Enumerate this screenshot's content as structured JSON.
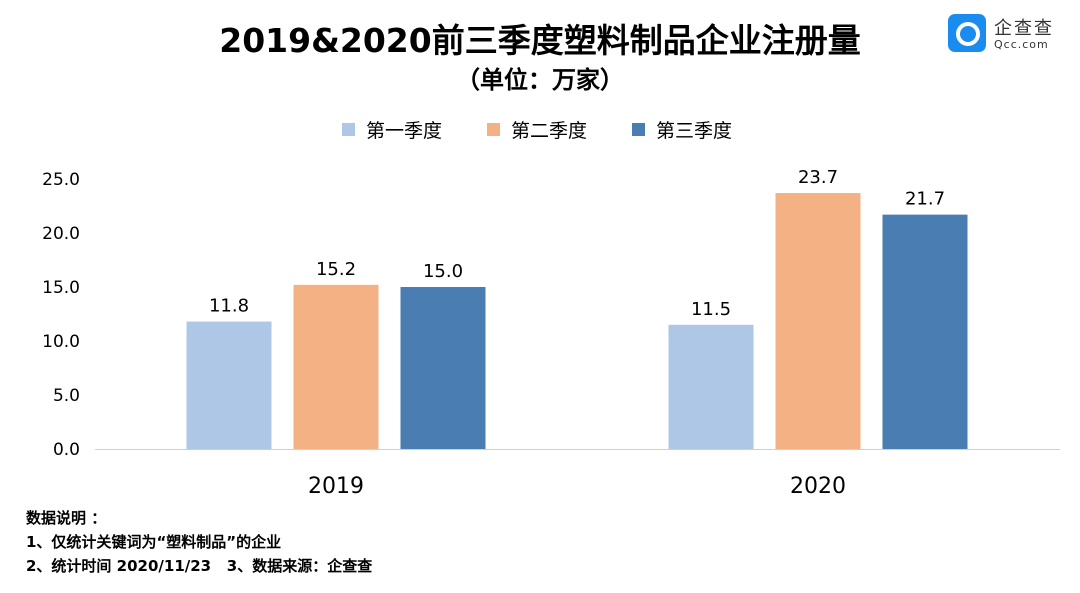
{
  "chart_data": {
    "type": "bar",
    "title": "2019&2020前三季度塑料制品企业注册量",
    "subtitle": "（单位：万家）",
    "categories": [
      "2019",
      "2020"
    ],
    "series": [
      {
        "name": "第一季度",
        "values": [
          11.8,
          11.5
        ],
        "color": "#AFC7E7"
      },
      {
        "name": "第二季度",
        "values": [
          15.2,
          23.7
        ],
        "color": "#F4B183"
      },
      {
        "name": "第三季度",
        "values": [
          15.0,
          21.7
        ],
        "color": "#4A7EB3"
      }
    ],
    "ylim": [
      0,
      25
    ],
    "yticks": [
      "0.0",
      "5.0",
      "10.0",
      "15.0",
      "20.0",
      "25.0"
    ],
    "legend_position": "top",
    "grid": false
  },
  "logo": {
    "cn": "企查查",
    "en": "Qcc.com"
  },
  "footer": {
    "line1": "数据说明 ：",
    "line2": "1、仅统计关键词为“塑料制品”的企业",
    "line3": "2、统计时间 2020/11/23   3、数据来源：企查查"
  }
}
